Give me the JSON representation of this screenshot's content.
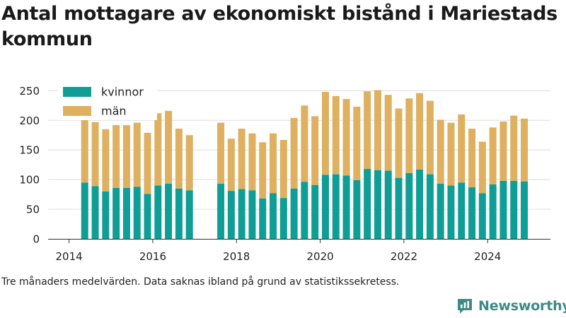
{
  "title": "Antal mottagare av ekonomiskt bistånd i Mariestads kommun",
  "footnote": "Tre månaders medelvärden. Data saknas ibland på grund av statistikssekretess.",
  "brand": {
    "name": "Newsworthy"
  },
  "colors": {
    "kvinnor": "#0e9e95",
    "man": "#deb060",
    "axis": "#333333",
    "grid": "#dddddd"
  },
  "chart_data": {
    "type": "bar",
    "stacked": true,
    "title": "Antal mottagare av ekonomiskt bistånd i Mariestads kommun",
    "xlabel": "",
    "ylabel": "",
    "ylim": [
      0,
      260
    ],
    "xlim": [
      2013.5,
      2025.5
    ],
    "yticks": [
      0,
      50,
      100,
      150,
      200,
      250
    ],
    "xticks": [
      "2014",
      "2016",
      "2018",
      "2020",
      "2022",
      "2024"
    ],
    "grid": true,
    "legend": "top-left",
    "x": [
      2014.375,
      2014.625,
      2014.875,
      2015.125,
      2015.375,
      2015.625,
      2015.875,
      2016.125,
      2016.375,
      2016.625,
      2016.875,
      2017.625,
      2017.875,
      2018.125,
      2018.375,
      2018.625,
      2018.875,
      2019.125,
      2019.375,
      2019.625,
      2019.875,
      2020.125,
      2020.375,
      2020.625,
      2020.875,
      2021.125,
      2021.375,
      2021.625,
      2021.875,
      2022.125,
      2022.375,
      2022.625,
      2022.875,
      2023.125,
      2023.375,
      2023.625,
      2023.875,
      2024.125,
      2024.375,
      2024.625,
      2024.875
    ],
    "series": [
      {
        "name": "kvinnor",
        "values": [
          95,
          89,
          80,
          86,
          86,
          88,
          76,
          90,
          93,
          85,
          82,
          93,
          81,
          84,
          82,
          68,
          77,
          69,
          85,
          96,
          91,
          108,
          109,
          107,
          99,
          118,
          116,
          115,
          103,
          111,
          117,
          109,
          93,
          90,
          95,
          87,
          77,
          92,
          98,
          98,
          97
        ]
      },
      {
        "name": "män",
        "values": [
          117,
          108,
          105,
          106,
          106,
          108,
          103,
          122,
          123,
          101,
          93,
          103,
          88,
          102,
          96,
          95,
          101,
          98,
          119,
          129,
          116,
          140,
          132,
          129,
          124,
          131,
          135,
          128,
          117,
          126,
          129,
          124,
          108,
          106,
          115,
          99,
          87,
          96,
          100,
          110,
          106
        ]
      }
    ]
  }
}
